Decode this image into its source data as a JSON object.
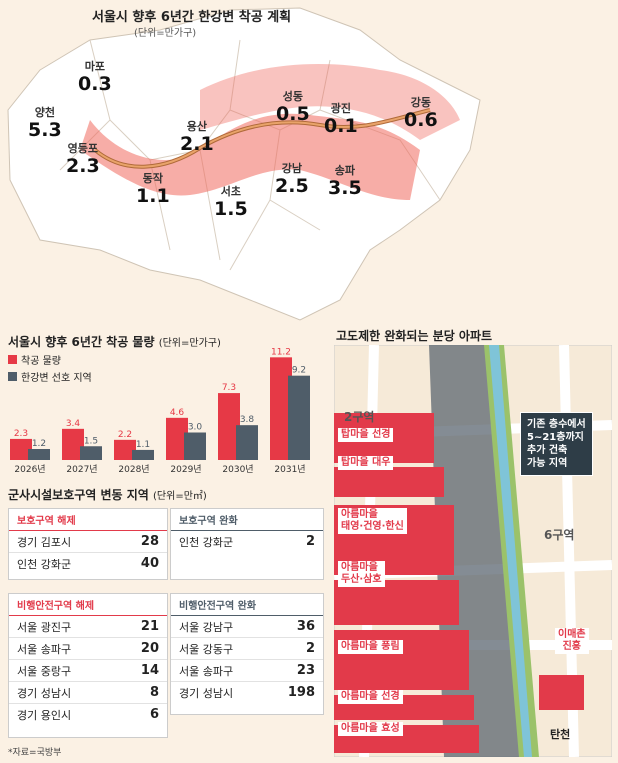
{
  "map": {
    "title": "서울시 향후 6년간 한강변 착공 계획",
    "unit": "(단위=만가구)",
    "districts": [
      {
        "name": "마포",
        "value": "0.3"
      },
      {
        "name": "양천",
        "value": "5.3"
      },
      {
        "name": "영등포",
        "value": "2.3"
      },
      {
        "name": "용산",
        "value": "2.1"
      },
      {
        "name": "동작",
        "value": "1.1"
      },
      {
        "name": "서초",
        "value": "1.5"
      },
      {
        "name": "성동",
        "value": "0.5"
      },
      {
        "name": "광진",
        "value": "0.1"
      },
      {
        "name": "강동",
        "value": "0.6"
      },
      {
        "name": "강남",
        "value": "2.5"
      },
      {
        "name": "송파",
        "value": "3.5"
      }
    ]
  },
  "chart": {
    "title": "서울시 향후 6년간 착공 물량",
    "unit": "(단위=만가구)",
    "legend": [
      "착공 물량",
      "한강변 선호 지역"
    ],
    "colors": {
      "total": "#e63946",
      "river": "#4f5d69"
    }
  },
  "chart_data": {
    "type": "bar",
    "categories": [
      "2026년",
      "2027년",
      "2028년",
      "2029년",
      "2030년",
      "2031년"
    ],
    "series": [
      {
        "name": "착공 물량",
        "values": [
          2.3,
          3.4,
          2.2,
          4.6,
          7.3,
          11.2
        ]
      },
      {
        "name": "한강변 선호 지역",
        "values": [
          1.2,
          1.5,
          1.1,
          3.0,
          3.8,
          9.2
        ]
      }
    ],
    "value_labels": [
      [
        "2.3",
        "3.4",
        "2.2",
        "4.6",
        "7.3",
        "11.2"
      ],
      [
        "1.2",
        "1.5",
        "1.1",
        "3.0",
        "3.8",
        "9.2"
      ]
    ],
    "ylim": [
      0,
      12
    ]
  },
  "military": {
    "title": "군사시설보호구역 변동 지역",
    "unit": "(단위=만㎡)",
    "protect_release": {
      "title": "보호구역 해제",
      "rows": [
        {
          "place": "경기 김포시",
          "num": "28"
        },
        {
          "place": "인천 강화군",
          "num": "40"
        }
      ]
    },
    "protect_ease": {
      "title": "보호구역 완화",
      "rows": [
        {
          "place": "인천 강화군",
          "num": "2"
        }
      ]
    },
    "flight_release": {
      "title": "비행안전구역 해제",
      "rows": [
        {
          "place": "서울 광진구",
          "num": "21"
        },
        {
          "place": "서울 송파구",
          "num": "20"
        },
        {
          "place": "서울 중랑구",
          "num": "14"
        },
        {
          "place": "경기 성남시",
          "num": "8"
        },
        {
          "place": "경기 용인시",
          "num": "6"
        }
      ]
    },
    "flight_ease": {
      "title": "비행안전구역 완화",
      "rows": [
        {
          "place": "서울 강남구",
          "num": "36"
        },
        {
          "place": "서울 강동구",
          "num": "2"
        },
        {
          "place": "서울 송파구",
          "num": "23"
        },
        {
          "place": "경기 성남시",
          "num": "198"
        }
      ]
    },
    "source": "*자료=국방부"
  },
  "apartments": {
    "title": "고도제한 완화되는 분당 아파트",
    "zone2": "2구역",
    "zone6": "6구역",
    "labels": [
      "탑마을 선경",
      "탑마을 대우",
      "아름마을\n태영·건영·한신",
      "아름마을\n두산·삼호",
      "아름마을 풍림",
      "아름마을 선경",
      "아름마을 효성",
      "이매촌\n진흥"
    ],
    "callout": "기존 층수에서\n5~21층까지\n추가 건축\n가능 지역",
    "station": "탄천"
  }
}
